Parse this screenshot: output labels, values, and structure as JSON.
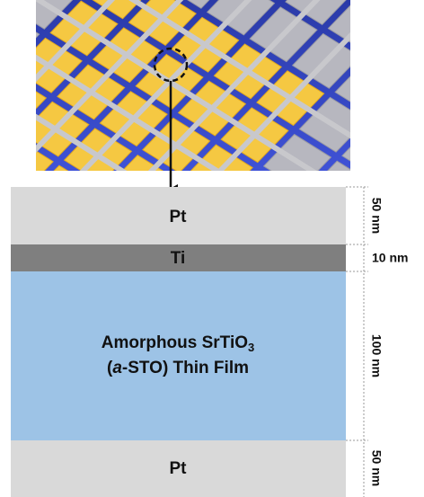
{
  "layers": [
    {
      "label": "Pt",
      "thickness": "50 nm"
    },
    {
      "label": "Ti",
      "thickness": "10 nm"
    },
    {
      "label": "Amorphous SrTiO",
      "label_sub": "3",
      "label_line2": [
        "(",
        "a",
        "-STO) Thin Film"
      ],
      "thickness": "100 nm"
    },
    {
      "label": "Pt",
      "thickness": "50 nm"
    }
  ]
}
